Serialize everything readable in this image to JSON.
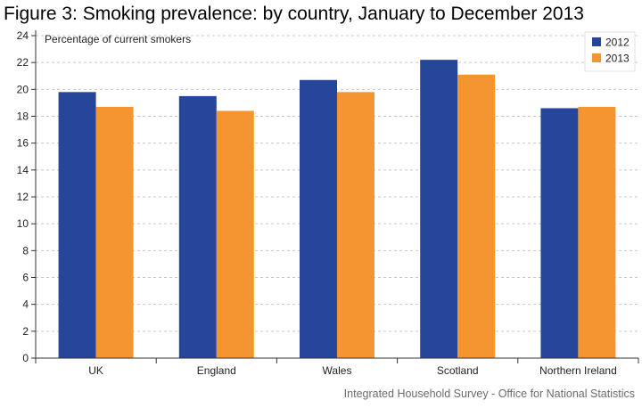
{
  "chart_data": {
    "type": "bar",
    "title": "Figure 3: Smoking prevalence: by country, January to December 2013",
    "ylabel": "Percentage of current smokers",
    "xlabel": "",
    "source": "Integrated Household Survey - Office for National Statistics",
    "categories": [
      "UK",
      "England",
      "Wales",
      "Scotland",
      "Northern Ireland"
    ],
    "series": [
      {
        "name": "2012",
        "color": "#26469a",
        "values": [
          19.8,
          19.5,
          20.7,
          22.2,
          18.6
        ]
      },
      {
        "name": "2013",
        "color": "#f49531",
        "values": [
          18.7,
          18.4,
          19.8,
          21.1,
          18.7
        ]
      }
    ],
    "ylim": [
      0,
      24
    ],
    "yticks": [
      "0",
      "2",
      "4",
      "6",
      "8",
      "10",
      "12",
      "14",
      "16",
      "18",
      "20",
      "22",
      "24"
    ],
    "grid": true,
    "legend_position": "top-right"
  }
}
